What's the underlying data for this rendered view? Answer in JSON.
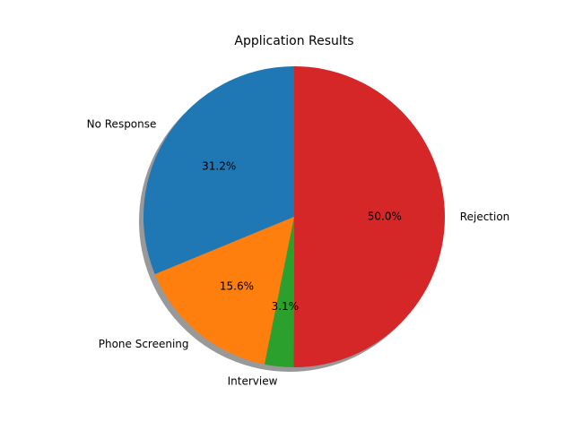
{
  "chart_data": {
    "type": "pie",
    "title": "Application Results",
    "categories": [
      "No Response",
      "Phone Screening",
      "Interview",
      "Rejection"
    ],
    "values": [
      31.2,
      15.6,
      3.1,
      50.0
    ],
    "percent_labels": [
      "31.2%",
      "15.6%",
      "3.1%",
      "50.0%"
    ],
    "colors": [
      "#1f77b4",
      "#ff7f0e",
      "#2ca02c",
      "#d62728"
    ],
    "start_angle": 90,
    "direction": "counterclockwise",
    "shadow": true,
    "legend": "none"
  }
}
